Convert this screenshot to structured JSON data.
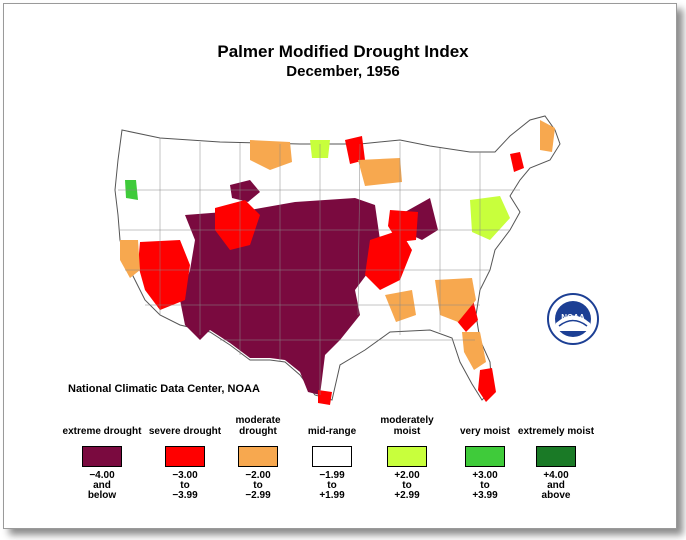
{
  "title": "Palmer Modified Drought Index",
  "subtitle": "December, 1956",
  "credit": "National Climatic Data Center, NOAA",
  "logo_text": "NOAA",
  "legend": [
    {
      "label": "extreme drought",
      "range": "−4.00\nand\nbelow",
      "color": "#7a0a3f"
    },
    {
      "label": "severe drought",
      "range": "−3.00\nto\n−3.99",
      "color": "#ff0000"
    },
    {
      "label": "moderate drought",
      "range": "−2.00\nto\n−2.99",
      "color": "#f7a84f"
    },
    {
      "label": "mid-range",
      "range": "−1.99\nto\n+1.99",
      "color": "#ffffff"
    },
    {
      "label": "moderately moist",
      "range": "+2.00\nto\n+2.99",
      "color": "#c8ff3c"
    },
    {
      "label": "very moist",
      "range": "+3.00\nto\n+3.99",
      "color": "#3fcb3a"
    },
    {
      "label": "extremely moist",
      "range": "+4.00\nand\nabove",
      "color": "#1a7a26"
    }
  ]
}
